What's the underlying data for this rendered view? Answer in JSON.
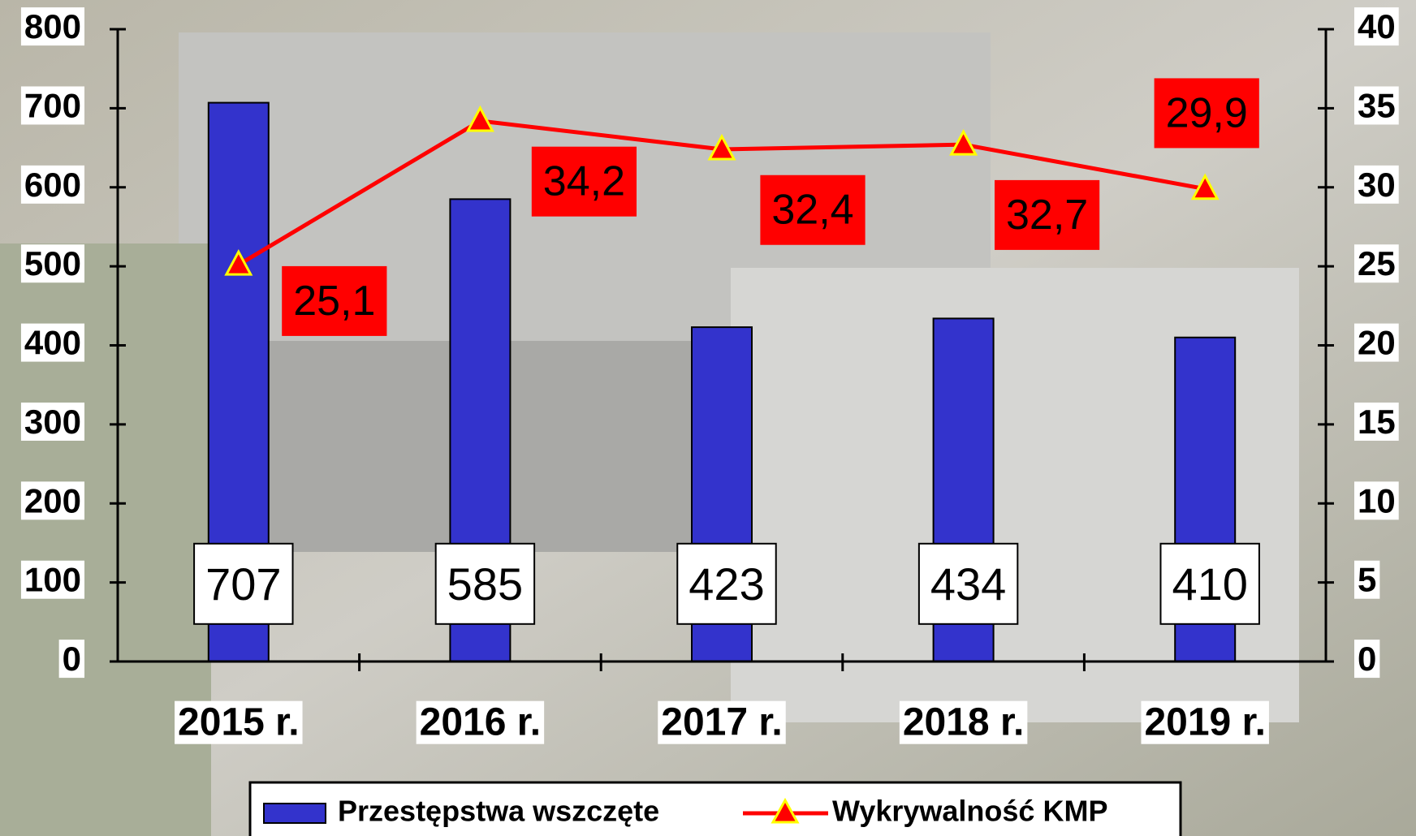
{
  "chart_data": {
    "type": "bar",
    "categories": [
      "2015 r.",
      "2016 r.",
      "2017 r.",
      "2018 r.",
      "2019 r."
    ],
    "series": [
      {
        "name": "Przestępstwa wszczęte",
        "color": "#3333cc",
        "type": "bar",
        "values": [
          707,
          585,
          423,
          434,
          410
        ]
      },
      {
        "name": "Wykrywalność KMP",
        "color": "#ff0000",
        "type": "line",
        "axis": "y2",
        "values": [
          25.1,
          34.2,
          32.4,
          32.7,
          29.9
        ],
        "value_labels": [
          "25,1",
          "34,2",
          "32,4",
          "32,7",
          "29,9"
        ]
      }
    ],
    "ylim": [
      0,
      800
    ],
    "yticks": [
      0,
      100,
      200,
      300,
      400,
      500,
      600,
      700,
      800
    ],
    "y2lim": [
      0,
      40
    ],
    "y2ticks": [
      0,
      5,
      10,
      15,
      20,
      25,
      30,
      35,
      40
    ],
    "legend": "bottom"
  }
}
